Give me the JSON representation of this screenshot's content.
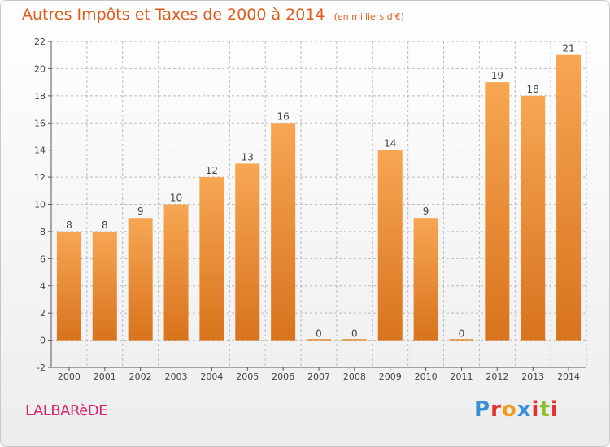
{
  "title": "Autres Impôts et Taxes de 2000 à 2014",
  "subtitle": "(en milliers d'€)",
  "commune": "LALBARèDE",
  "logo": {
    "text": "Proxiti",
    "letter_colors": [
      "#3a8fd6",
      "#e2332b",
      "#f39a1e",
      "#3a8fd6",
      "#e2332b",
      "#8dbf2f",
      "#e2332b"
    ]
  },
  "colors": {
    "bar_light": "#f7a652",
    "bar_dark": "#d9731d",
    "title": "#e05a1a",
    "commune": "#d6266e",
    "axis": "#555555",
    "grid": "#bbbbbb"
  },
  "chart_data": {
    "type": "bar",
    "categories": [
      "2000",
      "2001",
      "2002",
      "2003",
      "2004",
      "2005",
      "2006",
      "2007",
      "2008",
      "2009",
      "2010",
      "2011",
      "2012",
      "2013",
      "2014"
    ],
    "values": [
      8,
      8,
      9,
      10,
      12,
      13,
      16,
      0,
      0,
      14,
      9,
      0,
      19,
      18,
      21
    ],
    "data_labels": [
      "8",
      "8",
      "9",
      "10",
      "12",
      "13",
      "16",
      "0",
      "0",
      "14",
      "9",
      "0",
      "19",
      "18",
      "21"
    ],
    "ylim": [
      -2,
      22
    ],
    "yticks": [
      -2,
      0,
      2,
      4,
      6,
      8,
      10,
      12,
      14,
      16,
      18,
      20,
      22
    ],
    "ytick_labels": [
      "-2",
      "0",
      "2",
      "4",
      "6",
      "8",
      "10",
      "12",
      "14",
      "16",
      "18",
      "20",
      "22"
    ],
    "xlabel": "",
    "ylabel": "",
    "grid": "horizontal dashed"
  }
}
